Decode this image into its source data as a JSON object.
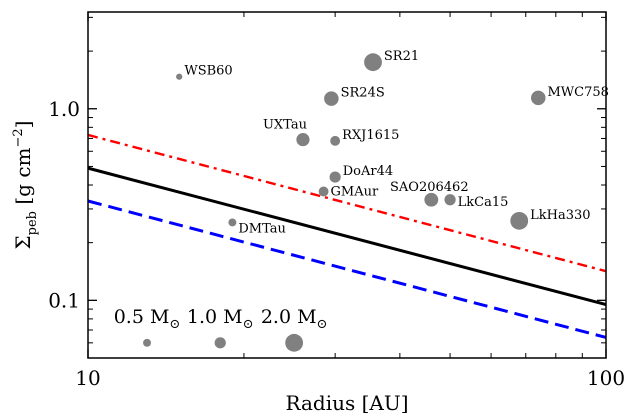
{
  "chart_data": {
    "type": "scatter",
    "title": "",
    "xlabel": "Radius [AU]",
    "ylabel_parts": {
      "sigma": "Σ",
      "sub": "peb",
      "rest": " [g cm",
      "exp": "−2",
      "close": "]"
    },
    "x_scale": "log",
    "y_scale": "log",
    "xlim": [
      10,
      100
    ],
    "ylim": [
      0.05,
      3.2
    ],
    "x_ticks": [
      {
        "value": 10,
        "label": "10"
      },
      {
        "value": 100,
        "label": "100"
      }
    ],
    "y_ticks": [
      {
        "value": 0.1,
        "label": "0.1"
      },
      {
        "value": 1.0,
        "label": "1.0"
      }
    ],
    "grid": false,
    "point_color": "#808080",
    "points": [
      {
        "name": "WSB60",
        "x": 15.0,
        "y": 1.47,
        "mass": 0.25
      },
      {
        "name": "SR21",
        "x": 35.5,
        "y": 1.75,
        "mass": 2.0
      },
      {
        "name": "SR24S",
        "x": 29.5,
        "y": 1.13,
        "mass": 1.5
      },
      {
        "name": "MWC758",
        "x": 74.0,
        "y": 1.14,
        "mass": 1.5
      },
      {
        "name": "UXTau",
        "x": 26.0,
        "y": 0.69,
        "mass": 1.3
      },
      {
        "name": "RXJ1615",
        "x": 30.0,
        "y": 0.68,
        "mass": 0.8
      },
      {
        "name": "DoAr44",
        "x": 30.0,
        "y": 0.44,
        "mass": 1.0
      },
      {
        "name": "GMAur",
        "x": 28.5,
        "y": 0.37,
        "mass": 0.8
      },
      {
        "name": "SAO206462",
        "x": 46.0,
        "y": 0.335,
        "mass": 1.4
      },
      {
        "name": "LkCa15",
        "x": 50.0,
        "y": 0.335,
        "mass": 1.0
      },
      {
        "name": "LkHa330",
        "x": 68.0,
        "y": 0.26,
        "mass": 2.0
      },
      {
        "name": "DMTau",
        "x": 19.0,
        "y": 0.255,
        "mass": 0.5
      }
    ],
    "lines": [
      {
        "style": "dashdot",
        "color": "#ff0000",
        "width": 2.4,
        "x": [
          10,
          100
        ],
        "y": [
          0.73,
          0.142
        ]
      },
      {
        "style": "solid",
        "color": "#000000",
        "width": 3.0,
        "x": [
          10,
          100
        ],
        "y": [
          0.49,
          0.095
        ]
      },
      {
        "style": "dashed",
        "color": "#0000ff",
        "width": 3.0,
        "x": [
          10,
          100
        ],
        "y": [
          0.33,
          0.064
        ]
      }
    ],
    "legend": {
      "placement": "bottom-left",
      "y": 0.06,
      "items": [
        {
          "label": "0.5 M",
          "mass": 0.5,
          "x": 13.0
        },
        {
          "label": "1.0 M",
          "mass": 1.0,
          "x": 18.0
        },
        {
          "label": "2.0 M",
          "mass": 2.0,
          "x": 25.0
        }
      ],
      "sun_symbol": "⊙"
    }
  }
}
